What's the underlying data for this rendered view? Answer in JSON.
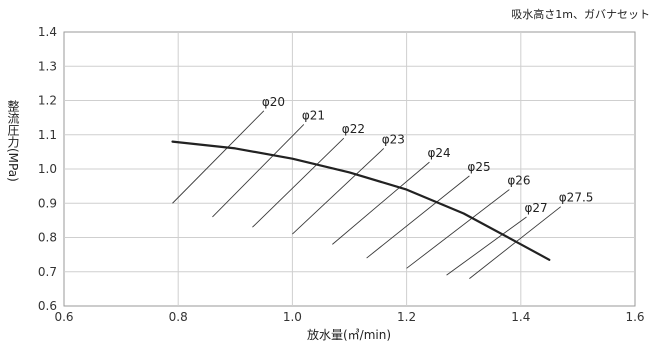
{
  "chart_data": {
    "type": "line",
    "note": "吸水高さ1m、ガバナセット",
    "xlabel": "放水量(㎥/min)",
    "ylabel": "整流圧力(MPa)",
    "xlim": [
      0.6,
      1.6
    ],
    "ylim": [
      0.6,
      1.4
    ],
    "x_ticks": [
      "0.6",
      "0.8",
      "1.0",
      "1.2",
      "1.4",
      "1.6"
    ],
    "y_ticks": [
      "0.6",
      "0.7",
      "0.8",
      "0.9",
      "1.0",
      "1.1",
      "1.2",
      "1.3",
      "1.4"
    ],
    "grid": true,
    "series": [
      {
        "x": [
          0.79,
          0.9,
          1.0,
          1.1,
          1.2,
          1.3,
          1.4,
          1.45
        ],
        "y": [
          1.08,
          1.06,
          1.03,
          0.99,
          0.94,
          0.87,
          0.78,
          0.735
        ],
        "color": "#222222"
      }
    ],
    "nozzle_lines": [
      {
        "label": "φ20",
        "x": [
          0.79,
          0.95
        ],
        "y": [
          0.9,
          1.17
        ]
      },
      {
        "label": "φ21",
        "x": [
          0.86,
          1.02
        ],
        "y": [
          0.86,
          1.13
        ]
      },
      {
        "label": "φ22",
        "x": [
          0.93,
          1.09
        ],
        "y": [
          0.83,
          1.09
        ]
      },
      {
        "label": "φ23",
        "x": [
          1.0,
          1.16
        ],
        "y": [
          0.81,
          1.06
        ]
      },
      {
        "label": "φ24",
        "x": [
          1.07,
          1.24
        ],
        "y": [
          0.78,
          1.02
        ]
      },
      {
        "label": "φ25",
        "x": [
          1.13,
          1.31
        ],
        "y": [
          0.74,
          0.98
        ]
      },
      {
        "label": "φ26",
        "x": [
          1.2,
          1.38
        ],
        "y": [
          0.71,
          0.94
        ]
      },
      {
        "label": "φ27",
        "x": [
          1.27,
          1.41
        ],
        "y": [
          0.69,
          0.86
        ]
      },
      {
        "label": "φ27.5",
        "x": [
          1.31,
          1.47
        ],
        "y": [
          0.68,
          0.89
        ]
      }
    ]
  }
}
